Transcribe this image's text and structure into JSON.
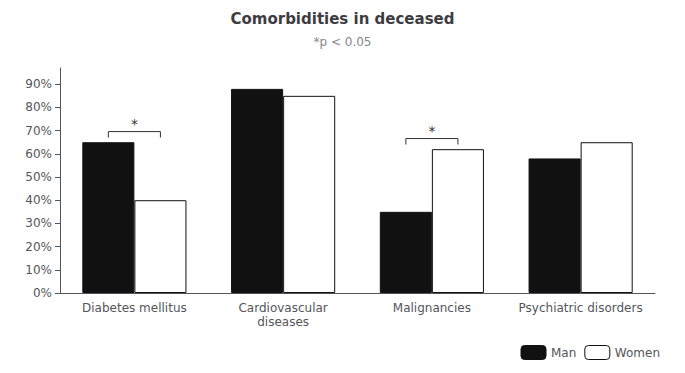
{
  "chart_data": {
    "type": "bar",
    "title": "Comorbidities in deceased",
    "subtitle": "*p < 0.05",
    "categories": [
      "Diabetes mellitus",
      "Cardiovascular\ndiseases",
      "Malignancies",
      "Psychiatric disorders"
    ],
    "series": [
      {
        "name": "Man",
        "color": "#111111",
        "values": [
          65,
          88,
          35,
          58
        ]
      },
      {
        "name": "Women",
        "color": "#ffffff",
        "values": [
          40,
          85,
          62,
          65
        ]
      }
    ],
    "ylim": [
      0,
      97
    ],
    "yticks": [
      {
        "value": 0,
        "label": "0%"
      },
      {
        "value": 10,
        "label": "10%"
      },
      {
        "value": 20,
        "label": "20%"
      },
      {
        "value": 30,
        "label": "30%"
      },
      {
        "value": 40,
        "label": "40%"
      },
      {
        "value": 50,
        "label": "50%"
      },
      {
        "value": 60,
        "label": "60%"
      },
      {
        "value": 70,
        "label": "70%"
      },
      {
        "value": 80,
        "label": "80%"
      },
      {
        "value": 90,
        "label": "90%"
      }
    ],
    "annotations": [
      {
        "text": "*",
        "category": "Diabetes mellitus",
        "y": 67
      },
      {
        "text": "*",
        "category": "Malignancies",
        "y": 64
      }
    ],
    "legend": "lower right",
    "grid": false
  }
}
